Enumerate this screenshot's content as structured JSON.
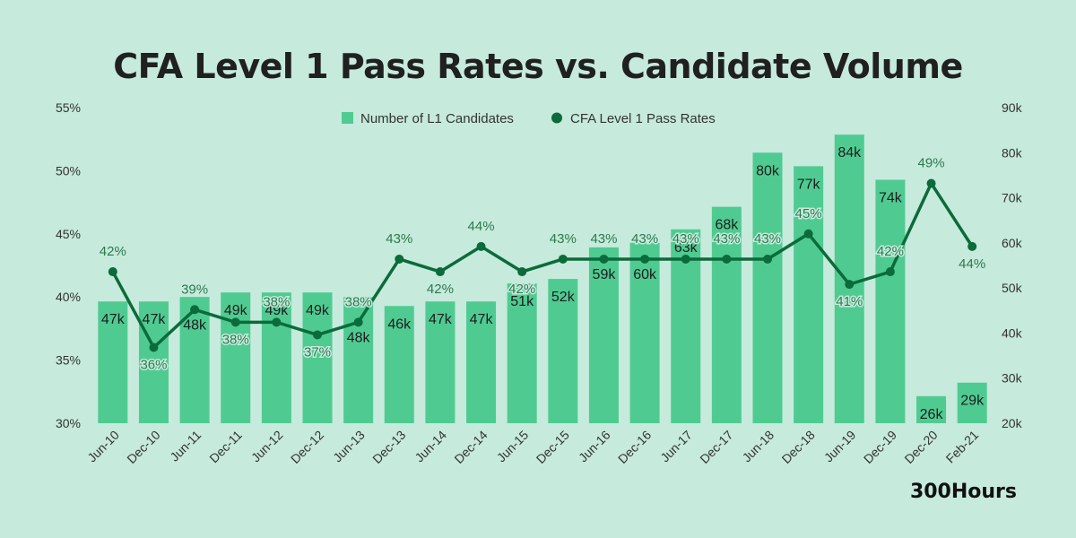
{
  "title": "CFA Level 1 Pass Rates vs. Candidate Volume",
  "brand": "300Hours",
  "colors": {
    "background": "#c6eadb",
    "bar": "#4fcb92",
    "line": "#0b6b3a",
    "pct_label": "#2c7a4f",
    "bar_label": "#1d1d1d",
    "axis_text": "#333333"
  },
  "chart_data": {
    "type": "bar+line",
    "title": "CFA Level 1 Pass Rates vs. Candidate Volume",
    "categories": [
      "Jun-10",
      "Dec-10",
      "Jun-11",
      "Dec-11",
      "Jun-12",
      "Dec-12",
      "Jun-13",
      "Dec-13",
      "Jun-14",
      "Dec-14",
      "Jun-15",
      "Dec-15",
      "Jun-16",
      "Dec-16",
      "Jun-17",
      "Dec-17",
      "Jun-18",
      "Dec-18",
      "Jun-19",
      "Dec-19",
      "Dec-20",
      "Feb-21"
    ],
    "series": [
      {
        "name": "Number of L1 Candidates",
        "type": "bar",
        "axis": "right",
        "values": [
          47,
          47,
          48,
          49,
          49,
          49,
          48,
          46,
          47,
          47,
          51,
          52,
          59,
          60,
          63,
          68,
          80,
          77,
          84,
          74,
          26,
          29
        ],
        "labels": [
          "47k",
          "47k",
          "48k",
          "49k",
          "49k",
          "49k",
          "48k",
          "46k",
          "47k",
          "47k",
          "51k",
          "52k",
          "59k",
          "60k",
          "63k",
          "68k",
          "80k",
          "77k",
          "84k",
          "74k",
          "26k",
          "29k"
        ]
      },
      {
        "name": "CFA Level 1 Pass Rates",
        "type": "line",
        "axis": "left",
        "values": [
          42,
          36,
          39,
          38,
          38,
          37,
          38,
          43,
          42,
          44,
          42,
          43,
          43,
          43,
          43,
          43,
          43,
          45,
          41,
          42,
          49,
          44
        ],
        "labels": [
          "42%",
          "36%",
          "39%",
          "38%",
          "38%",
          "37%",
          "38%",
          "43%",
          "42%",
          "44%",
          "42%",
          "43%",
          "43%",
          "43%",
          "43%",
          "43%",
          "43%",
          "45%",
          "41%",
          "42%",
          "49%",
          "44%"
        ]
      }
    ],
    "left_axis": {
      "min": 30,
      "max": 55,
      "ticks": [
        30,
        35,
        40,
        45,
        50,
        55
      ],
      "tick_labels": [
        "30%",
        "35%",
        "40%",
        "45%",
        "50%",
        "55%"
      ]
    },
    "right_axis": {
      "min": 20,
      "max": 90,
      "ticks": [
        20,
        30,
        40,
        50,
        60,
        70,
        80,
        90
      ],
      "tick_labels": [
        "20k",
        "30k",
        "40k",
        "50k",
        "60k",
        "70k",
        "80k",
        "90k"
      ]
    },
    "legend_position": "top-center",
    "grid": false
  }
}
